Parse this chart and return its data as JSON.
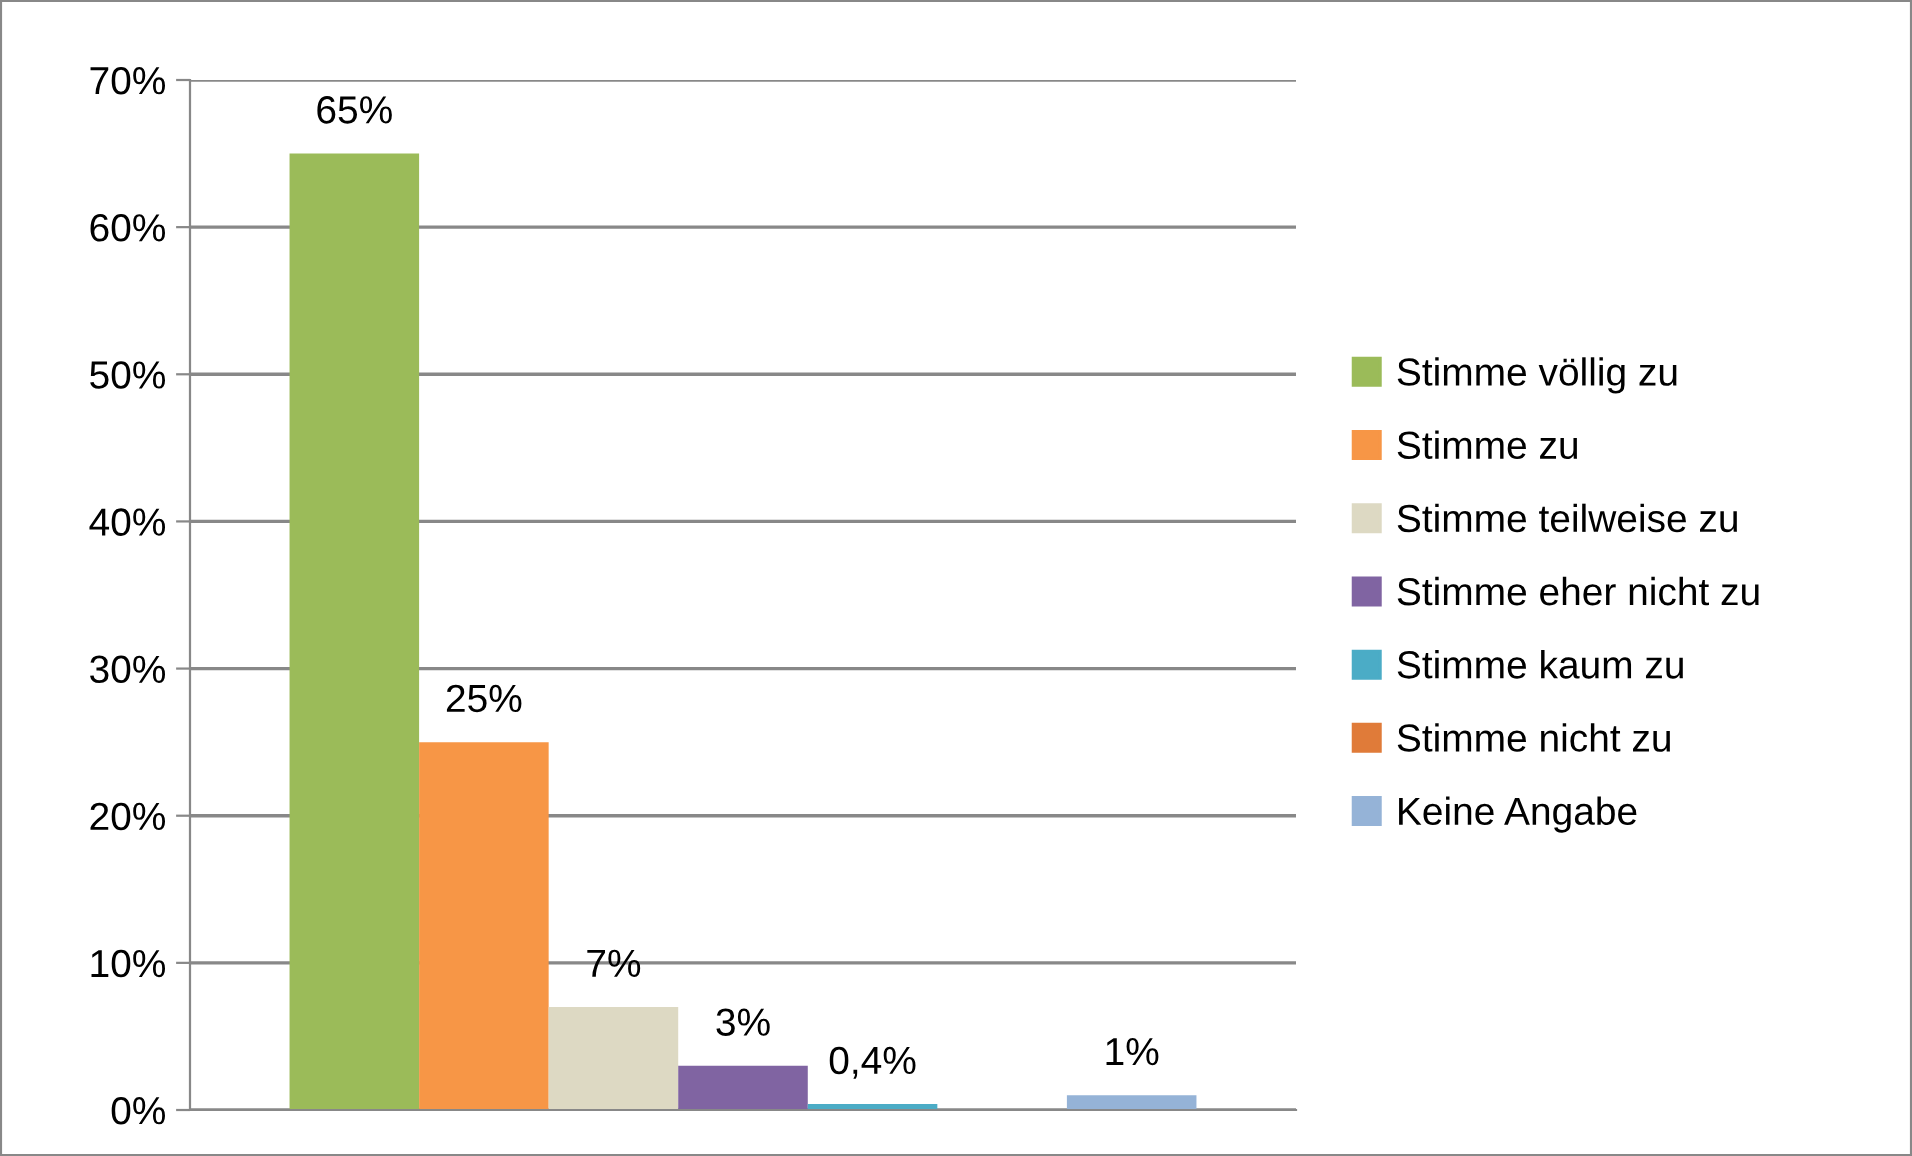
{
  "chart_data": {
    "type": "bar",
    "categories": [
      null
    ],
    "series": [
      {
        "name": "Stimme völlig zu",
        "color": "#9bbb59",
        "values": [
          65
        ],
        "value_labels": [
          "65%"
        ]
      },
      {
        "name": "Stimme zu",
        "color": "#f79646",
        "values": [
          25
        ],
        "value_labels": [
          "25%"
        ]
      },
      {
        "name": "Stimme teilweise zu",
        "color": "#ddd9c3",
        "values": [
          7
        ],
        "value_labels": [
          "7%"
        ]
      },
      {
        "name": "Stimme eher nicht zu",
        "color": "#8064a2",
        "values": [
          3
        ],
        "value_labels": [
          "3%"
        ]
      },
      {
        "name": "Stimme kaum zu",
        "color": "#4bacc6",
        "values": [
          0.4
        ],
        "value_labels": [
          "0,4%"
        ]
      },
      {
        "name": "Stimme nicht zu",
        "color": "#e07b39",
        "values": [
          0
        ],
        "value_labels": [
          null
        ]
      },
      {
        "name": "Keine Angabe",
        "color": "#95b3d7",
        "values": [
          1
        ],
        "value_labels": [
          "1%"
        ]
      }
    ],
    "ylim": [
      0,
      70
    ],
    "yticks": [
      {
        "value": 0,
        "label": "0%"
      },
      {
        "value": 10,
        "label": "10%"
      },
      {
        "value": 20,
        "label": "20%"
      },
      {
        "value": 30,
        "label": "30%"
      },
      {
        "value": 40,
        "label": "40%"
      },
      {
        "value": 50,
        "label": "50%"
      },
      {
        "value": 60,
        "label": "60%"
      },
      {
        "value": 70,
        "label": "70%"
      }
    ],
    "grid": "y",
    "legend": "right"
  }
}
